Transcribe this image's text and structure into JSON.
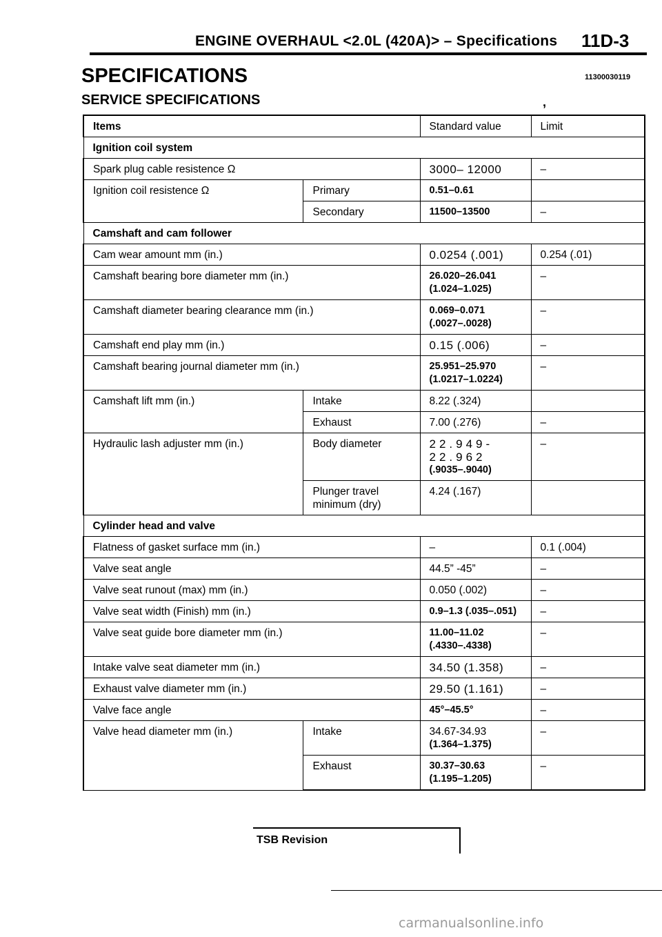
{
  "header": {
    "title": "ENGINE OVERHAUL <2.0L (420A)> – Specifications",
    "page_code": "11D-3"
  },
  "section": {
    "title": "SPECIFICATIONS",
    "id": "11300030119",
    "subtitle": "SERVICE SPECIFICATIONS",
    "mark": ","
  },
  "table": {
    "headers": {
      "items": "Items",
      "standard": "Standard value",
      "limit": "Limit"
    },
    "groups": {
      "ignition": "Ignition coil system",
      "camshaft": "Camshaft and cam follower",
      "cylinder": "Cylinder head and valve"
    },
    "rows": {
      "spark_plug": {
        "item": "Spark plug cable resistence Ω",
        "std": "3000– 12000",
        "limit": "–"
      },
      "coil_primary": {
        "item": "Ignition coil resistence Ω",
        "sub": "Primary",
        "std": "0.51–0.61",
        "limit": ""
      },
      "coil_secondary": {
        "sub": "Secondary",
        "std": "11500–13500",
        "limit": "–"
      },
      "cam_wear": {
        "item": "Cam wear amount mm (in.)",
        "std": "0.0254 (.001)",
        "limit": "0.254 (.01)"
      },
      "bearing_bore": {
        "item": "Camshaft bearing bore diameter mm (in.)",
        "std1": "26.020–26.041",
        "std2": "(1.024–1.025)",
        "limit": "–"
      },
      "bearing_clearance": {
        "item": "Camshaft diameter bearing clearance mm (in.)",
        "std1": "0.069–0.071",
        "std2": "(.0027–.0028)",
        "limit": "–"
      },
      "end_play": {
        "item": "Camshaft end play mm (in.)",
        "std": "0.15 (.006)",
        "limit": "–"
      },
      "journal": {
        "item": "Camshaft bearing journal diameter mm (in.)",
        "std1": "25.951–25.970",
        "std2": "(1.0217–1.0224)",
        "limit": "–"
      },
      "lift_intake": {
        "item": "Camshaft lift mm (in.)",
        "sub": "Intake",
        "std": "8.22 (.324)",
        "limit": ""
      },
      "lift_exhaust": {
        "sub": "Exhaust",
        "std": "7.00 (.276)",
        "limit": "–"
      },
      "lash_body": {
        "item": "Hydraulic lash adjuster mm (in.)",
        "sub": "Body diameter",
        "std1": "22.949-22.962",
        "std2": "(.9035–.9040)",
        "limit": "–"
      },
      "lash_plunger": {
        "sub1": "Plunger travel",
        "sub2": "minimum (dry)",
        "std": "4.24 (.167)",
        "limit": ""
      },
      "flatness": {
        "item": "Flatness of gasket surface mm (in.)",
        "std": "–",
        "limit": "0.1 (.004)"
      },
      "seat_angle": {
        "item": "Valve seat angle",
        "std": "44.5” -45”",
        "limit": "–"
      },
      "seat_runout": {
        "item": "Valve seat runout (max) mm (in.)",
        "std": "0.050 (.002)",
        "limit": "–"
      },
      "seat_width": {
        "item": "Valve seat width (Finish) mm (in.)",
        "std": "0.9–1.3 (.035–.051)",
        "limit": "–"
      },
      "guide_bore": {
        "item": "Valve seat guide bore diameter mm (in.)",
        "std1": "11.00–11.02",
        "std2": "(.4330–.4338)",
        "limit": "–"
      },
      "intake_seat": {
        "item": "Intake valve seat diameter mm (in.)",
        "std": "34.50 (1.358)",
        "limit": "–"
      },
      "exhaust_valve": {
        "item": "Exhaust valve diameter mm (in.)",
        "std": "29.50 (1.161)",
        "limit": "–"
      },
      "face_angle": {
        "item": "Valve face angle",
        "std": "45°–45.5°",
        "limit": "–"
      },
      "head_intake": {
        "item": "Valve head diameter mm (in.)",
        "sub": "Intake",
        "std1": "34.67-34.93",
        "std2": "(1.364–1.375)",
        "limit": "–"
      },
      "head_exhaust": {
        "sub": "Exhaust",
        "std1": "30.37–30.63",
        "std2": "(1.195–1.205)",
        "limit": "–"
      }
    }
  },
  "footer": {
    "tsb_label": "TSB Revision",
    "watermark": "carmanualsonline.info"
  }
}
